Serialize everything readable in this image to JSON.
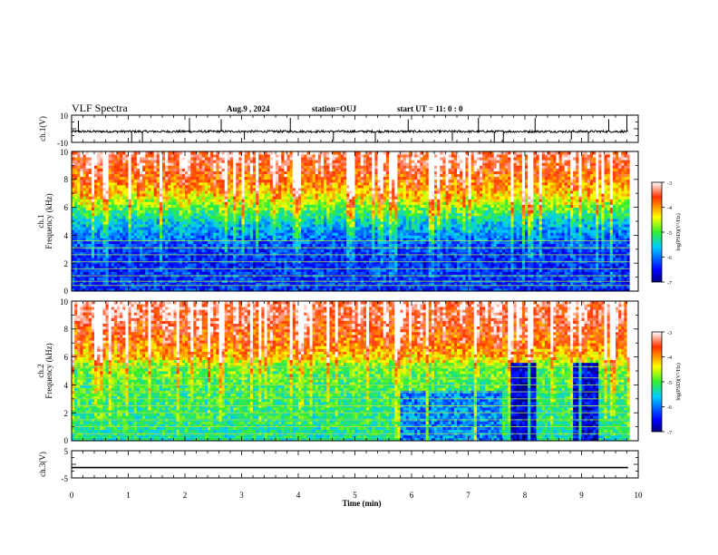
{
  "header": {
    "title": "VLF Spectra",
    "date": "Aug.9 , 2024",
    "station": "station=OUJ",
    "start": "start UT = 11: 0 : 0"
  },
  "chart_data": [
    {
      "type": "line",
      "name": "waveform-ch1",
      "ylabel": "ch.1(V)",
      "ylim": [
        -10,
        10
      ],
      "ytick_labels": [
        "10",
        "-10"
      ],
      "xlim": [
        0,
        10
      ],
      "baseline": -2,
      "noise": 0.8,
      "spikes": [
        {
          "x": 0.12,
          "y": 6
        },
        {
          "x": 1.06,
          "y": -10
        },
        {
          "x": 1.25,
          "y": -10
        },
        {
          "x": 2.08,
          "y": 8
        },
        {
          "x": 2.64,
          "y": 7
        },
        {
          "x": 3.05,
          "y": -8
        },
        {
          "x": 3.86,
          "y": 8
        },
        {
          "x": 4.62,
          "y": -9
        },
        {
          "x": 5.36,
          "y": -10
        },
        {
          "x": 5.94,
          "y": 7
        },
        {
          "x": 6.72,
          "y": -9
        },
        {
          "x": 7.18,
          "y": 8
        },
        {
          "x": 7.46,
          "y": -10
        },
        {
          "x": 7.62,
          "y": -10
        },
        {
          "x": 8.18,
          "y": 8
        },
        {
          "x": 8.82,
          "y": -8
        },
        {
          "x": 9.12,
          "y": -10
        },
        {
          "x": 9.48,
          "y": 7
        },
        {
          "x": 9.8,
          "y": 10
        }
      ]
    },
    {
      "type": "heatmap",
      "name": "spectrogram-ch1",
      "ylabel_top": "ch.1",
      "ylabel": "Frequency (kHz)",
      "xlim": [
        0,
        9.85
      ],
      "ylim": [
        0,
        10
      ],
      "ytick_labels": [
        "0",
        "2",
        "4",
        "6",
        "8",
        "10"
      ],
      "colorbar": {
        "label": "log(PSD)(V²/Hz)",
        "range": [
          -7,
          -3
        ],
        "tick_labels": [
          "-7",
          "-6",
          "-5",
          "-4",
          "-3"
        ]
      },
      "lines_khz": [
        0.4,
        0.7,
        1.1,
        1.6,
        2.1,
        2.6,
        3.1,
        3.6
      ],
      "profile": [
        {
          "f": 0,
          "v": -6.3
        },
        {
          "f": 1,
          "v": -6.3
        },
        {
          "f": 2,
          "v": -6.4
        },
        {
          "f": 3,
          "v": -6.3
        },
        {
          "f": 4,
          "v": -6.0
        },
        {
          "f": 5,
          "v": -5.6
        },
        {
          "f": 6,
          "v": -4.9
        },
        {
          "f": 7,
          "v": -4.3
        },
        {
          "f": 8,
          "v": -3.9
        },
        {
          "f": 9,
          "v": -3.6
        },
        {
          "f": 10,
          "v": -3.4
        }
      ],
      "pattern": "spiky"
    },
    {
      "type": "heatmap",
      "name": "spectrogram-ch2",
      "ylabel_top": "ch.2",
      "ylabel": "Frequency (kHz)",
      "xlim": [
        0,
        9.85
      ],
      "ylim": [
        0,
        10
      ],
      "ytick_labels": [
        "0",
        "2",
        "4",
        "6",
        "8",
        "10"
      ],
      "colorbar": {
        "label": "log(PSD)(V²/Hz)",
        "range": [
          -7,
          -3
        ],
        "tick_labels": [
          "-7",
          "-6",
          "-5",
          "-4",
          "-3"
        ]
      },
      "lines_khz": [
        0.5,
        1.0,
        1.5,
        2.0,
        2.5,
        3.0,
        3.5,
        4.0,
        4.5,
        5.3
      ],
      "profile": [
        {
          "f": 0,
          "v": -5.3
        },
        {
          "f": 2,
          "v": -5.2
        },
        {
          "f": 4,
          "v": -5.1
        },
        {
          "f": 5.3,
          "v": -4.9
        },
        {
          "f": 6,
          "v": -4.3
        },
        {
          "f": 7,
          "v": -3.9
        },
        {
          "f": 8,
          "v": -3.7
        },
        {
          "f": 9,
          "v": -3.5
        },
        {
          "f": 10,
          "v": -3.4
        }
      ],
      "quiet_regions": [
        {
          "t0": 5.7,
          "t1": 7.6,
          "f_top": 3.5,
          "v": -5.9
        },
        {
          "t0": 7.75,
          "t1": 8.2,
          "f_top": 5.6,
          "v": -6.7
        },
        {
          "t0": 8.85,
          "t1": 9.3,
          "f_top": 5.6,
          "v": -6.6
        }
      ],
      "pattern": "spiky"
    },
    {
      "type": "line",
      "name": "waveform-ch3",
      "ylabel": "ch.3(V)",
      "ylim": [
        -5,
        5
      ],
      "ytick_labels": [
        "5",
        "-5"
      ],
      "xlim": [
        0,
        10
      ],
      "baseline": -1.2,
      "noise": 0
    }
  ],
  "x_axis": {
    "label": "Time (min)",
    "tick_labels": [
      "0",
      "1",
      "2",
      "3",
      "4",
      "5",
      "6",
      "7",
      "8",
      "9",
      "10"
    ]
  }
}
